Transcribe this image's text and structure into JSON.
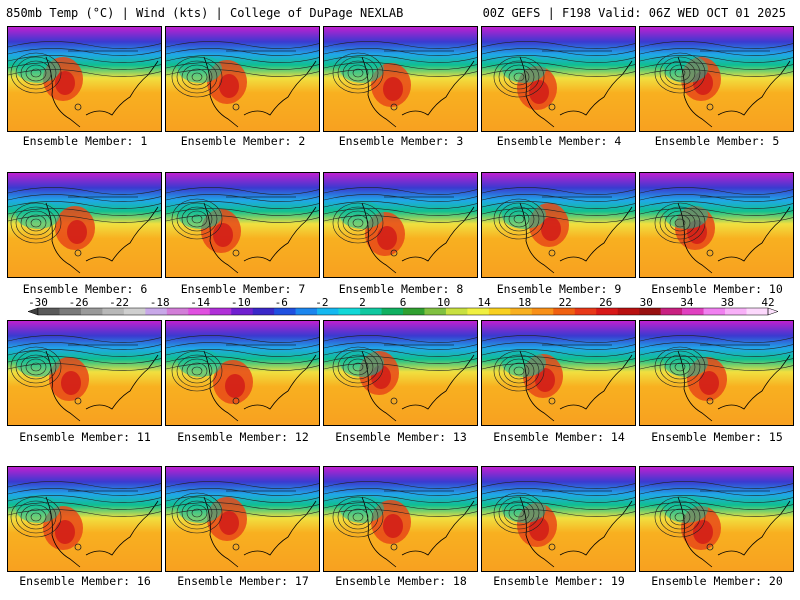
{
  "header": {
    "left": "850mb Temp (°C) | Wind (kts) | College of DuPage NEXLAB",
    "right": "00Z GEFS | F198 Valid: 06Z WED OCT 01 2025"
  },
  "panels": [
    {
      "label": "Ensemble Member: 1"
    },
    {
      "label": "Ensemble Member: 2"
    },
    {
      "label": "Ensemble Member: 3"
    },
    {
      "label": "Ensemble Member: 4"
    },
    {
      "label": "Ensemble Member: 5"
    },
    {
      "label": "Ensemble Member: 6"
    },
    {
      "label": "Ensemble Member: 7"
    },
    {
      "label": "Ensemble Member: 8"
    },
    {
      "label": "Ensemble Member: 9"
    },
    {
      "label": "Ensemble Member: 10"
    },
    {
      "label": "Ensemble Member: 11"
    },
    {
      "label": "Ensemble Member: 12"
    },
    {
      "label": "Ensemble Member: 13"
    },
    {
      "label": "Ensemble Member: 14"
    },
    {
      "label": "Ensemble Member: 15"
    },
    {
      "label": "Ensemble Member: 16"
    },
    {
      "label": "Ensemble Member: 17"
    },
    {
      "label": "Ensemble Member: 18"
    },
    {
      "label": "Ensemble Member: 19"
    },
    {
      "label": "Ensemble Member: 20"
    }
  ],
  "colorbar": {
    "ticks": [
      "-30",
      "-26",
      "-22",
      "-18",
      "-14",
      "-10",
      "-6",
      "-2",
      "2",
      "6",
      "10",
      "14",
      "18",
      "22",
      "26",
      "30",
      "34",
      "38",
      "42"
    ],
    "colors": [
      "#5a5a5a",
      "#7a7a7a",
      "#9a9a9a",
      "#b8b8b8",
      "#cfcfcf",
      "#c8a8e8",
      "#d27ed8",
      "#e050e0",
      "#b030d8",
      "#7020d0",
      "#3a28c8",
      "#2050e0",
      "#1c86ee",
      "#15b8f0",
      "#12d8d8",
      "#10c8a0",
      "#10b060",
      "#30a030",
      "#80c040",
      "#c8e040",
      "#f0f040",
      "#f8d020",
      "#f8b020",
      "#f89018",
      "#f06010",
      "#e83818",
      "#d81818",
      "#b81010",
      "#981010",
      "#c82080",
      "#e040c0",
      "#f080f0",
      "#f8b0f8",
      "#fcd8fc"
    ]
  }
}
